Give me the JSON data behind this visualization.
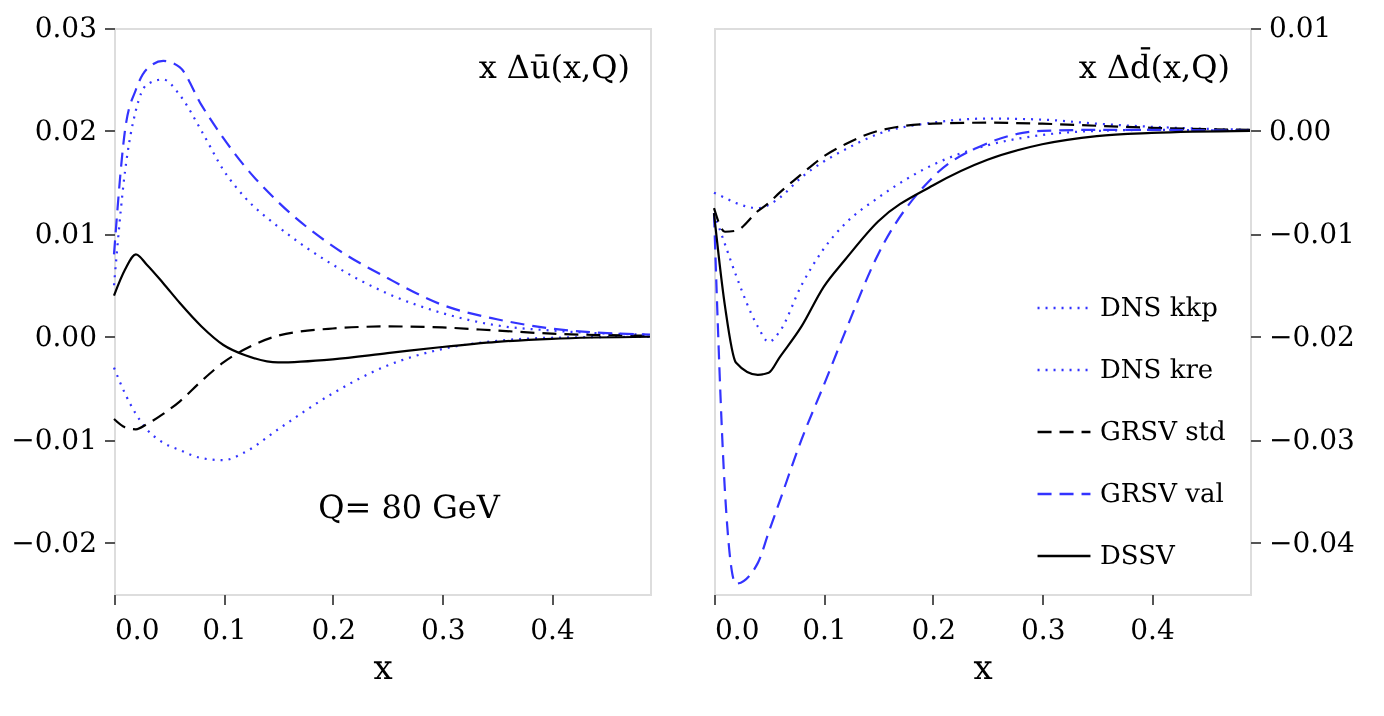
{
  "chart_data": [
    {
      "type": "line",
      "xlabel": "x",
      "annotations": [
        "x Δū(x,Q)",
        "Q= 80 GeV"
      ],
      "legend": false,
      "grid": false,
      "x": [
        0,
        0.01,
        0.02,
        0.03,
        0.045,
        0.06,
        0.08,
        0.1,
        0.12,
        0.15,
        0.2,
        0.25,
        0.3,
        0.35,
        0.4,
        0.49
      ],
      "xlim": [
        0,
        0.49
      ],
      "xticks": [
        {
          "value": 0,
          "label": "0.0"
        },
        {
          "value": 0.1,
          "label": "0.1"
        },
        {
          "value": 0.2,
          "label": "0.2"
        },
        {
          "value": 0.3,
          "label": "0.3"
        },
        {
          "value": 0.4,
          "label": "0.4"
        }
      ],
      "ylim": [
        -0.025,
        0.03
      ],
      "yticks": [
        {
          "value": -0.02,
          "label": "−0.02"
        },
        {
          "value": -0.01,
          "label": "−0.01"
        },
        {
          "value": 0,
          "label": "0.00"
        },
        {
          "value": 0.01,
          "label": "0.01"
        },
        {
          "value": 0.02,
          "label": "0.02"
        },
        {
          "value": 0.03,
          "label": "0.03"
        }
      ],
      "series": [
        {
          "color": "#3333ff",
          "line_style": "dotted",
          "values": [
            0.005,
            0.016,
            0.022,
            0.0245,
            0.025,
            0.0235,
            0.02,
            0.0162,
            0.0135,
            0.0107,
            0.007,
            0.0042,
            0.0023,
            0.0011,
            0.0006,
            0.0002
          ]
        },
        {
          "color": "#3333ff",
          "line_style": "dotted",
          "values": [
            -0.003,
            -0.0055,
            -0.0075,
            -0.009,
            -0.0103,
            -0.011,
            -0.0118,
            -0.012,
            -0.0112,
            -0.009,
            -0.0055,
            -0.0028,
            -0.0012,
            -0.0004,
            -0.0001,
            0
          ]
        },
        {
          "color": "#000000",
          "line_style": "dashed",
          "values": [
            -0.008,
            -0.0088,
            -0.009,
            -0.0085,
            -0.0075,
            -0.0063,
            -0.0043,
            -0.0025,
            -0.0012,
            0.0001,
            0.0008,
            0.001,
            0.0009,
            0.0006,
            0.0003,
            0.0001
          ]
        },
        {
          "color": "#3333ff",
          "line_style": "dashed",
          "values": [
            0.008,
            0.02,
            0.024,
            0.026,
            0.0268,
            0.0262,
            0.0225,
            0.0193,
            0.0165,
            0.0131,
            0.0088,
            0.0057,
            0.0031,
            0.0017,
            0.0008,
            0.0002
          ]
        },
        {
          "color": "#000000",
          "line_style": "solid",
          "values": [
            0.004,
            0.0065,
            0.008,
            0.007,
            0.0052,
            0.0033,
            0.001,
            -0.0008,
            -0.0018,
            -0.0025,
            -0.0022,
            -0.0016,
            -0.001,
            -0.0005,
            -0.0002,
            0
          ]
        }
      ]
    },
    {
      "type": "line",
      "xlabel": "x",
      "annotations": [
        "x Δd̄(x,Q)"
      ],
      "legend": "bottom right",
      "grid": false,
      "x": [
        0,
        0.01,
        0.02,
        0.04,
        0.05,
        0.06,
        0.08,
        0.1,
        0.12,
        0.15,
        0.2,
        0.25,
        0.3,
        0.35,
        0.4,
        0.49
      ],
      "xlim": [
        0,
        0.49
      ],
      "xticks": [
        {
          "value": 0,
          "label": "0.0"
        },
        {
          "value": 0.1,
          "label": "0.1"
        },
        {
          "value": 0.2,
          "label": "0.2"
        },
        {
          "value": 0.3,
          "label": "0.3"
        },
        {
          "value": 0.4,
          "label": "0.4"
        }
      ],
      "ylim": [
        -0.045,
        0.01
      ],
      "yticks": [
        {
          "value": -0.04,
          "label": "−0.04"
        },
        {
          "value": -0.03,
          "label": "−0.03"
        },
        {
          "value": -0.02,
          "label": "−0.02"
        },
        {
          "value": -0.01,
          "label": "−0.01"
        },
        {
          "value": 0,
          "label": "0.00"
        },
        {
          "value": 0.01,
          "label": "0.01"
        }
      ],
      "series": [
        {
          "name": "DNS kkp",
          "color": "#3333ff",
          "line_style": "dotted",
          "values": [
            -0.008,
            -0.011,
            -0.014,
            -0.019,
            -0.0205,
            -0.0195,
            -0.015,
            -0.0115,
            -0.009,
            -0.0065,
            -0.0033,
            -0.0014,
            -0.0004,
            0,
            0.0001,
            0
          ]
        },
        {
          "name": "DNS kre",
          "color": "#3333ff",
          "line_style": "dotted",
          "values": [
            -0.006,
            -0.0065,
            -0.007,
            -0.0075,
            -0.0072,
            -0.0065,
            -0.0045,
            -0.003,
            -0.0018,
            -0.0003,
            0.0008,
            0.0012,
            0.0011,
            0.0007,
            0.0004,
            0.0001
          ]
        },
        {
          "name": "GRSV std",
          "color": "#000000",
          "line_style": "dashed",
          "values": [
            -0.0075,
            -0.0098,
            -0.0097,
            -0.0078,
            -0.007,
            -0.006,
            -0.0042,
            -0.0025,
            -0.0013,
            0,
            0.0007,
            0.0008,
            0.0007,
            0.0005,
            0.0003,
            0.0001
          ]
        },
        {
          "name": "GRSV val",
          "color": "#3333ff",
          "line_style": "dashed",
          "values": [
            -0.008,
            -0.035,
            -0.044,
            -0.042,
            -0.039,
            -0.036,
            -0.03,
            -0.0248,
            -0.0195,
            -0.012,
            -0.0045,
            -0.0012,
            0,
            0.0001,
            0.0001,
            0
          ]
        },
        {
          "name": "DSSV",
          "color": "#000000",
          "line_style": "solid",
          "values": [
            -0.008,
            -0.017,
            -0.0225,
            -0.0237,
            -0.0235,
            -0.022,
            -0.019,
            -0.0152,
            -0.0125,
            -0.0088,
            -0.0053,
            -0.0028,
            -0.0013,
            -0.0005,
            -0.0002,
            0
          ]
        }
      ]
    }
  ]
}
